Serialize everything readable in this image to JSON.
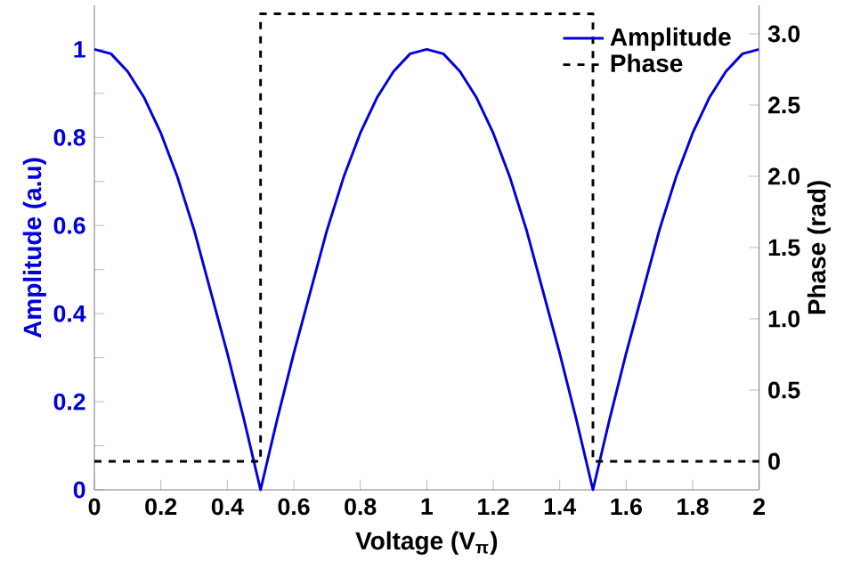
{
  "chart_data": {
    "type": "line",
    "xlabel": "Voltage (V$_{π}$)",
    "ylabel": "Amplitude (a.u)",
    "y2label": "Phase (rad)",
    "xlim": [
      0,
      2
    ],
    "xticks": [
      0,
      0.2,
      0.4,
      0.6,
      0.8,
      1,
      1.2,
      1.4,
      1.6,
      1.8,
      2
    ],
    "ylim": [
      0,
      1.1
    ],
    "yticks": [
      0,
      {
        "value": 0.1,
        "label": null
      },
      0.2,
      {
        "value": 0.3,
        "label": null
      },
      0.4,
      {
        "value": 0.5,
        "label": null
      },
      0.6,
      {
        "value": 0.7,
        "label": null
      },
      0.8,
      {
        "value": 0.9,
        "label": null
      },
      1
    ],
    "y2lim": [
      -0.2,
      3.2
    ],
    "y2ticks": [
      0,
      0.5,
      {
        "value": 1,
        "label": "1.0"
      },
      1.5,
      {
        "value": 2,
        "label": "2.0"
      },
      2.5,
      {
        "value": 3,
        "label": "3.0"
      }
    ],
    "legend": "top right",
    "grid": false,
    "series": [
      {
        "name": "Amplitude",
        "color": "#0000dd",
        "line_style": "solid",
        "x": [
          0,
          0.05,
          0.1,
          0.15,
          0.2,
          0.25,
          0.3,
          0.35,
          0.4,
          0.45,
          0.5,
          0.55,
          0.6,
          0.65,
          0.7,
          0.75,
          0.8,
          0.85,
          0.9,
          0.95,
          1,
          1.05,
          1.1,
          1.15,
          1.2,
          1.25,
          1.3,
          1.35,
          1.4,
          1.45,
          1.5,
          1.55,
          1.6,
          1.65,
          1.7,
          1.75,
          1.8,
          1.85,
          1.9,
          1.95,
          2
        ],
        "values": [
          1,
          0.99,
          0.95,
          0.89,
          0.81,
          0.71,
          0.59,
          0.45,
          0.31,
          0.16,
          0,
          0.16,
          0.31,
          0.45,
          0.59,
          0.71,
          0.81,
          0.89,
          0.95,
          0.99,
          1,
          0.99,
          0.95,
          0.89,
          0.81,
          0.71,
          0.59,
          0.45,
          0.31,
          0.16,
          0,
          0.16,
          0.31,
          0.45,
          0.59,
          0.71,
          0.81,
          0.89,
          0.95,
          0.99,
          1
        ]
      },
      {
        "name": "Phase",
        "color": "#000000",
        "line_style": "dashed",
        "axis": "y2",
        "x": [
          0,
          0.5,
          0.5,
          1.5,
          1.5,
          2
        ],
        "values": [
          0,
          0,
          3.14,
          3.14,
          0,
          0
        ]
      }
    ]
  }
}
